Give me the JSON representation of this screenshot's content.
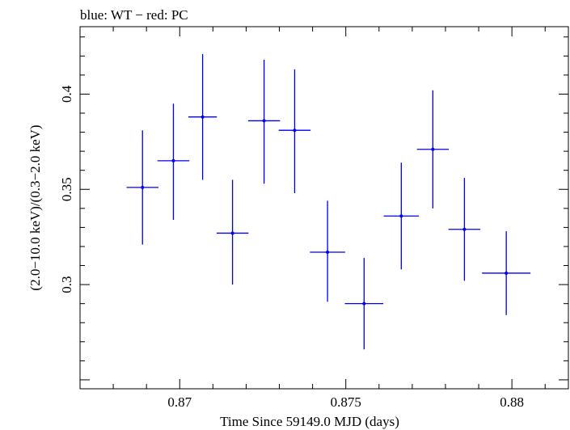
{
  "chart_data": {
    "type": "scatter",
    "title": "blue: WT − red: PC",
    "xlabel": "Time Since 59149.0 MJD (days)",
    "ylabel": "(2.0−10.0 keV)/(0.3−2.0 keV)",
    "xlim": [
      0.867,
      0.8817
    ],
    "ylim": [
      0.2453,
      0.4354
    ],
    "x_ticks": [
      0.87,
      0.875,
      0.88
    ],
    "x_tick_labels": [
      "0.87",
      "0.875",
      "0.88"
    ],
    "y_ticks": [
      0.3,
      0.35,
      0.4
    ],
    "y_tick_labels": [
      "0.3",
      "0.35",
      "0.4"
    ],
    "grid": false,
    "colors": {
      "WT": "#0000ee",
      "axes": "#000000"
    },
    "series": [
      {
        "name": "WT",
        "points": [
          {
            "x": 0.86888,
            "xerr": 0.00048,
            "y": 0.351,
            "ylo": 0.321,
            "yhi": 0.381
          },
          {
            "x": 0.86981,
            "xerr": 0.00048,
            "y": 0.365,
            "ylo": 0.334,
            "yhi": 0.395
          },
          {
            "x": 0.87069,
            "xerr": 0.00043,
            "y": 0.388,
            "ylo": 0.355,
            "yhi": 0.421
          },
          {
            "x": 0.87159,
            "xerr": 0.00048,
            "y": 0.327,
            "ylo": 0.3,
            "yhi": 0.355
          },
          {
            "x": 0.87254,
            "xerr": 0.00048,
            "y": 0.386,
            "ylo": 0.353,
            "yhi": 0.418
          },
          {
            "x": 0.87346,
            "xerr": 0.00048,
            "y": 0.381,
            "ylo": 0.348,
            "yhi": 0.413
          },
          {
            "x": 0.87445,
            "xerr": 0.00053,
            "y": 0.317,
            "ylo": 0.291,
            "yhi": 0.344
          },
          {
            "x": 0.87555,
            "xerr": 0.00058,
            "y": 0.29,
            "ylo": 0.266,
            "yhi": 0.314
          },
          {
            "x": 0.87667,
            "xerr": 0.00053,
            "y": 0.336,
            "ylo": 0.308,
            "yhi": 0.364
          },
          {
            "x": 0.87762,
            "xerr": 0.00048,
            "y": 0.371,
            "ylo": 0.34,
            "yhi": 0.402
          },
          {
            "x": 0.87857,
            "xerr": 0.00048,
            "y": 0.329,
            "ylo": 0.302,
            "yhi": 0.356
          },
          {
            "x": 0.87983,
            "xerr": 0.00073,
            "y": 0.306,
            "ylo": 0.284,
            "yhi": 0.328
          }
        ]
      }
    ]
  }
}
